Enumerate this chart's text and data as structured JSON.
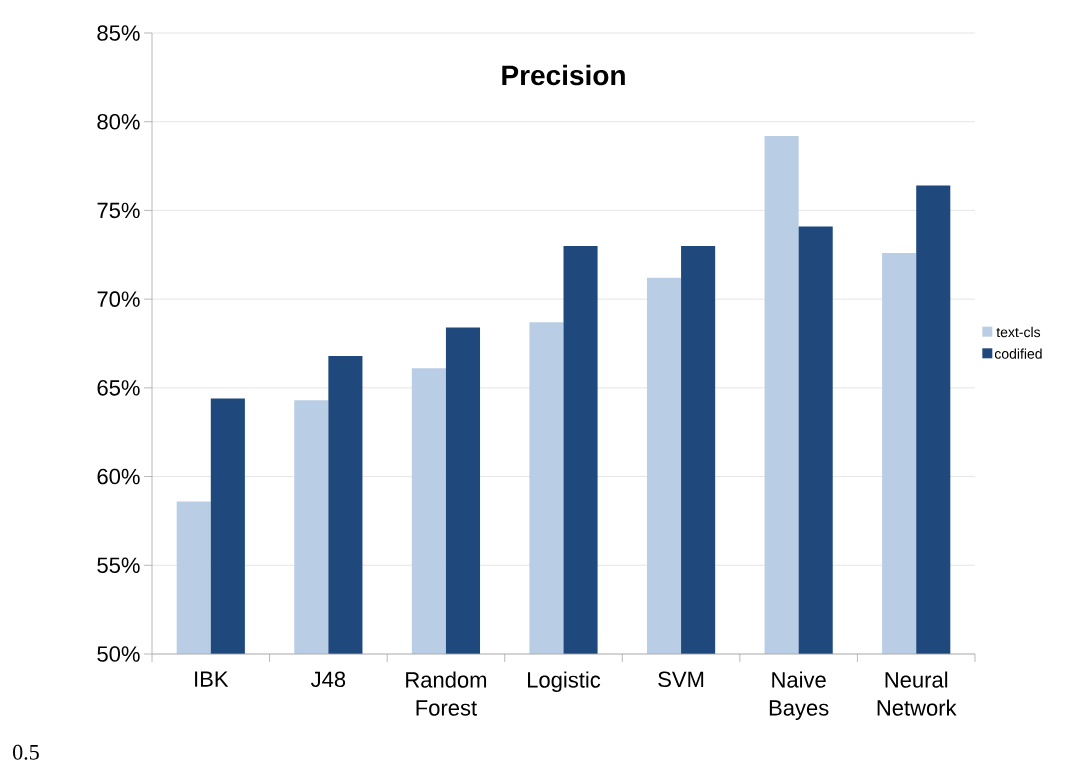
{
  "chart_data": {
    "type": "bar",
    "title": "Precision",
    "categories": [
      "IBK",
      "J48",
      "Random Forest",
      "Logistic",
      "SVM",
      "Naive Bayes",
      "Neural Network"
    ],
    "series": [
      {
        "name": "text-cls",
        "color": "#b9cde5",
        "values": [
          58.6,
          64.3,
          66.1,
          68.7,
          71.2,
          79.2,
          72.6
        ]
      },
      {
        "name": "codified",
        "color": "#1f497d",
        "values": [
          64.4,
          66.8,
          68.4,
          73.0,
          73.0,
          74.1,
          76.4
        ]
      }
    ],
    "ylim": [
      50,
      85
    ],
    "yticks": [
      {
        "value": 50,
        "label": "50%"
      },
      {
        "value": 55,
        "label": "55%"
      },
      {
        "value": 60,
        "label": "60%"
      },
      {
        "value": 65,
        "label": "65%"
      },
      {
        "value": 70,
        "label": "70%"
      },
      {
        "value": 75,
        "label": "75%"
      },
      {
        "value": 80,
        "label": "80%"
      },
      {
        "value": 85,
        "label": "85%"
      }
    ],
    "grid": "y",
    "legend": "right",
    "annotations": [
      "0.5"
    ]
  }
}
